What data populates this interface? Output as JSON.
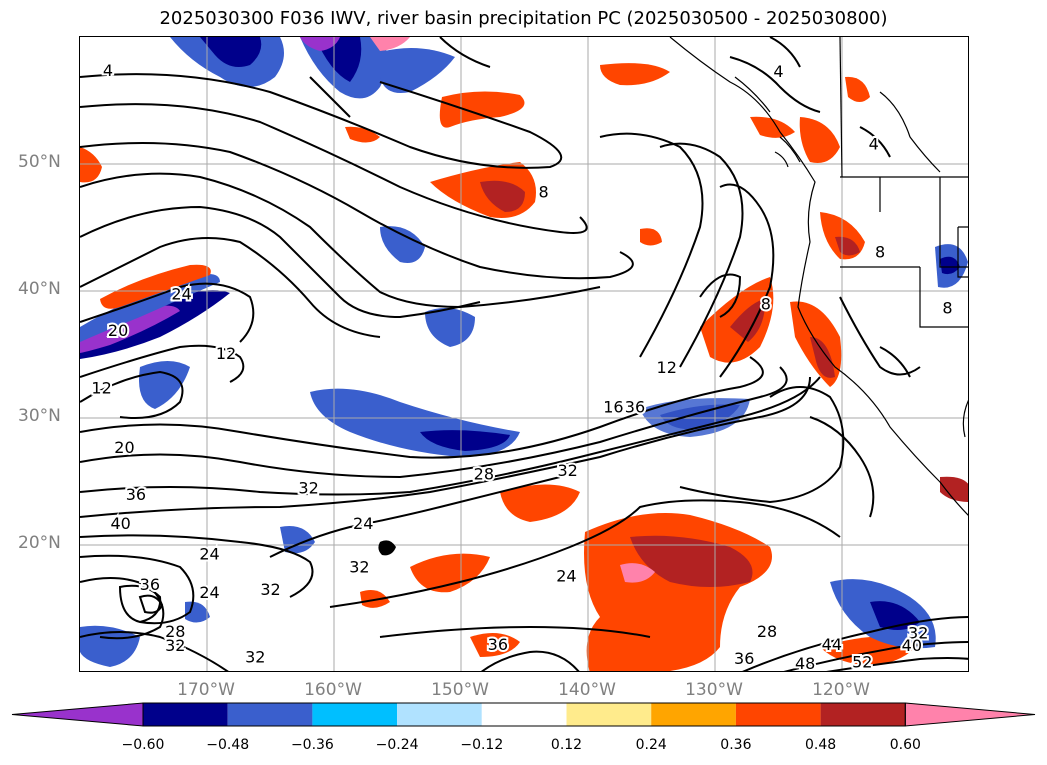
{
  "title": "2025030300 F036 IWV, river basin precipitation PC (2025030500 - 2025030800)",
  "lat_labels": [
    "50°N",
    "40°N",
    "30°N",
    "20°N"
  ],
  "lon_labels": [
    "170°W",
    "160°W",
    "150°W",
    "140°W",
    "130°W",
    "120°W"
  ],
  "colorbar": {
    "ticks": [
      "−0.60",
      "−0.48",
      "−0.36",
      "−0.24",
      "−0.12",
      "0.12",
      "0.24",
      "0.36",
      "0.48",
      "0.60"
    ],
    "colors": [
      "#9932cc",
      "#00008b",
      "#3a5fcd",
      "#00bfff",
      "#b0e2ff",
      "#ffffff",
      "#ffeb8c",
      "#ffa500",
      "#ff4500",
      "#b22222",
      "#ff82ab"
    ],
    "extend": "both"
  },
  "contour_labels": [
    {
      "text": "4",
      "lon": -177.8,
      "lat": 57.3
    },
    {
      "text": "4",
      "lon": -125.0,
      "lat": 57.2
    },
    {
      "text": "4",
      "lon": -117.5,
      "lat": 51.5
    },
    {
      "text": "8",
      "lon": -143.5,
      "lat": 47.7
    },
    {
      "text": "8",
      "lon": -126.0,
      "lat": 38.9
    },
    {
      "text": "8",
      "lon": -111.7,
      "lat": 38.6
    },
    {
      "text": "8",
      "lon": -117.0,
      "lat": 43.0
    },
    {
      "text": "12",
      "lon": -168.5,
      "lat": 35.0
    },
    {
      "text": "12",
      "lon": -178.3,
      "lat": 32.3
    },
    {
      "text": "12",
      "lon": -133.8,
      "lat": 33.9
    },
    {
      "text": "16",
      "lon": -138.0,
      "lat": 30.8
    },
    {
      "text": "20",
      "lon": -177.0,
      "lat": 36.8
    },
    {
      "text": "20",
      "lon": -176.5,
      "lat": 27.6
    },
    {
      "text": "24",
      "lon": -172.0,
      "lat": 39.7
    },
    {
      "text": "24",
      "lon": -169.8,
      "lat": 19.2
    },
    {
      "text": "24",
      "lon": -169.8,
      "lat": 16.2
    },
    {
      "text": "24",
      "lon": -157.7,
      "lat": 21.6
    },
    {
      "text": "24",
      "lon": -141.7,
      "lat": 17.5
    },
    {
      "text": "28",
      "lon": -148.2,
      "lat": 25.5
    },
    {
      "text": "28",
      "lon": -172.5,
      "lat": 13.1
    },
    {
      "text": "28",
      "lon": -125.9,
      "lat": 13.1
    },
    {
      "text": "32",
      "lon": -141.6,
      "lat": 25.8
    },
    {
      "text": "32",
      "lon": -162.0,
      "lat": 24.4
    },
    {
      "text": "32",
      "lon": -158.0,
      "lat": 18.2
    },
    {
      "text": "32",
      "lon": -165.0,
      "lat": 16.4
    },
    {
      "text": "32",
      "lon": -172.5,
      "lat": 12.0
    },
    {
      "text": "32",
      "lon": -166.2,
      "lat": 11.1
    },
    {
      "text": "32",
      "lon": -114.0,
      "lat": 13.0
    },
    {
      "text": "36",
      "lon": -136.3,
      "lat": 30.8
    },
    {
      "text": "36",
      "lon": -175.6,
      "lat": 23.9
    },
    {
      "text": "36",
      "lon": -147.1,
      "lat": 12.1
    },
    {
      "text": "36",
      "lon": -127.7,
      "lat": 11.0
    },
    {
      "text": "36",
      "lon": -174.5,
      "lat": 16.8
    },
    {
      "text": "40",
      "lon": -176.8,
      "lat": 21.6
    },
    {
      "text": "40",
      "lon": -114.5,
      "lat": 12.0
    },
    {
      "text": "44",
      "lon": -120.8,
      "lat": 12.1
    },
    {
      "text": "48",
      "lon": -122.9,
      "lat": 10.6
    },
    {
      "text": "52",
      "lon": -118.4,
      "lat": 10.7
    }
  ]
}
